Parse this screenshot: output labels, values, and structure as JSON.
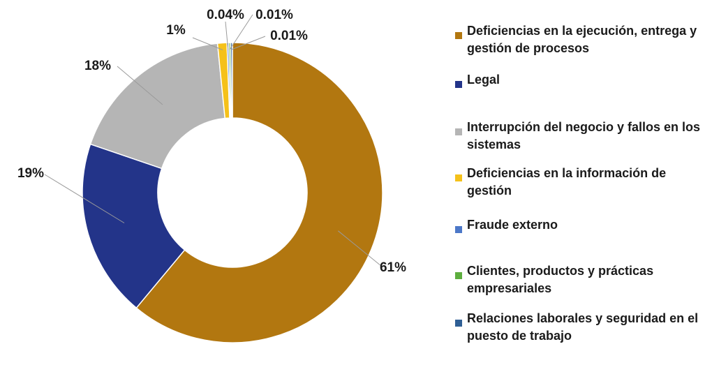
{
  "chart_data": {
    "type": "donut",
    "slices": [
      {
        "label": "Deficiencias en la ejecución, entrega y gestión de procesos",
        "value": 61,
        "value_label": "61%",
        "color": "#B27710"
      },
      {
        "label": "Legal",
        "value": 19,
        "value_label": "19%",
        "color": "#233489"
      },
      {
        "label": "Interrupción del negocio y fallos en los sistemas",
        "value": 18,
        "value_label": "18%",
        "color": "#B5B5B5"
      },
      {
        "label": "Deficiencias en la información de gestión",
        "value": 1,
        "value_label": "1%",
        "color": "#F5C11A"
      },
      {
        "label": "Fraude externo",
        "value": 0.04,
        "value_label": "0.04%",
        "color": "#4C78C8"
      },
      {
        "label": "Clientes, productos y prácticas empresariales",
        "value": 0.01,
        "value_label": "0.01%",
        "color": "#5DAE3E"
      },
      {
        "label": "Relaciones laborales y seguridad en el puesto de trabajo",
        "value": 0.01,
        "value_label": "0.01%",
        "color": "#2F5F95"
      }
    ],
    "legend_position": "right"
  }
}
